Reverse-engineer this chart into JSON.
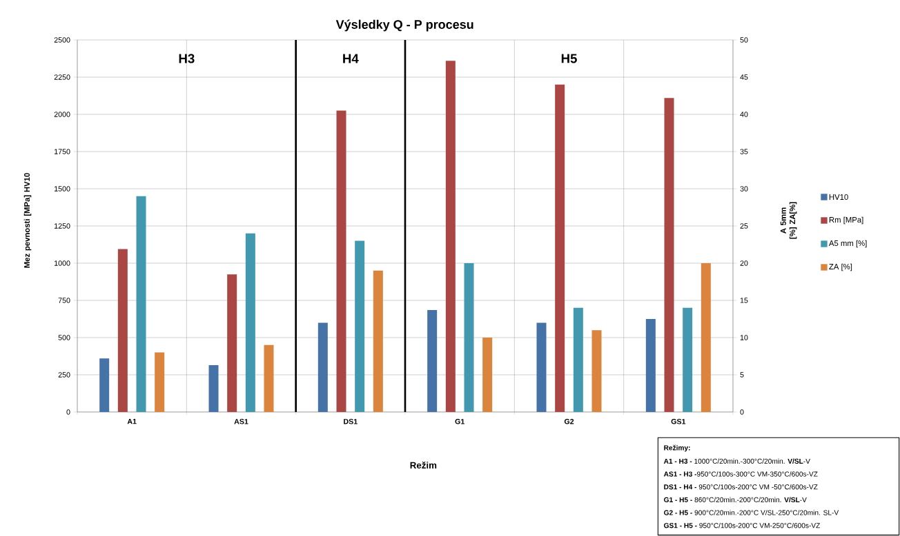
{
  "chart_data": {
    "type": "bar",
    "title": "Výsledky Q - P procesu",
    "xlabel": "Režim",
    "ylabel": "Mez pevnosti [MPa] HV10",
    "y2label": "A 5mm [%] ZA[%]",
    "categories": [
      "A1",
      "AS1",
      "DS1",
      "G1",
      "G2",
      "GS1"
    ],
    "series": [
      {
        "name": "HV10",
        "color": "#4572a7",
        "values": [
          360,
          315,
          600,
          685,
          600,
          625
        ]
      },
      {
        "name": "Rm [MPa]",
        "color": "#aa4643",
        "values": [
          1095,
          925,
          2025,
          2360,
          2200,
          2110
        ]
      },
      {
        "name": "A5 mm [%]",
        "color": "#4198af",
        "values": [
          29,
          24,
          23,
          20,
          14,
          14
        ],
        "axis": "y2"
      },
      {
        "name": "ZA [%]",
        "color": "#db843d",
        "values": [
          8,
          9,
          19,
          10,
          11,
          20
        ],
        "axis": "y2"
      }
    ],
    "ylim": [
      0,
      2500
    ],
    "yticks": [
      0,
      250,
      500,
      750,
      1000,
      1250,
      1500,
      1750,
      2000,
      2250,
      2500
    ],
    "y2lim": [
      0,
      50
    ],
    "y2ticks": [
      0,
      5,
      10,
      15,
      20,
      25,
      30,
      35,
      40,
      45,
      50
    ],
    "annotations": [
      "H3",
      "H4",
      "H5",
      "**Režimy:**",
      "**A1 - H3 -** 1000°C/20min.-300°C/20min. **V/SL**-V",
      "**AS1 - H3 -**950°C/100s-300°C VM-350°C/600s-VZ",
      "**DS1 - H4 -** 950°C/100s-200°C VM -50°C/600s-VZ",
      "**G1 - H5 -** 860°C/20min.-200°C/20min. **V/SL**-V",
      "**G2 - H5 -** 900°C/20min.-200°C V/SL-250°C/20min. SL-V",
      "**GS1 - H5 -** 950°C/100s-200°C VM-250°C/600s-VZ"
    ],
    "grid": true,
    "legend": "right"
  }
}
